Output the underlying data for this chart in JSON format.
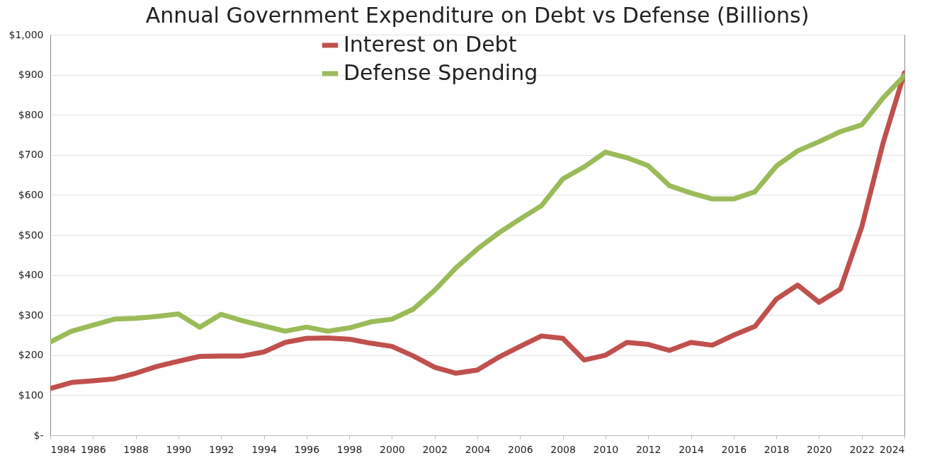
{
  "chart_data": {
    "type": "line",
    "title": "Annual Government Expenditure on Debt vs Defense (Billions)",
    "x": [
      1984,
      1985,
      1986,
      1987,
      1988,
      1989,
      1990,
      1991,
      1992,
      1993,
      1994,
      1995,
      1996,
      1997,
      1998,
      1999,
      2000,
      2001,
      2002,
      2003,
      2004,
      2005,
      2006,
      2007,
      2008,
      2009,
      2010,
      2011,
      2012,
      2013,
      2014,
      2015,
      2016,
      2017,
      2018,
      2019,
      2020,
      2021,
      2022,
      2023,
      2024
    ],
    "series": [
      {
        "name": "Interest on Debt",
        "color": "#c0504d",
        "values": [
          117,
          132,
          136,
          141,
          155,
          172,
          185,
          197,
          198,
          198,
          208,
          232,
          242,
          243,
          240,
          230,
          222,
          198,
          170,
          155,
          163,
          195,
          222,
          248,
          242,
          188,
          200,
          232,
          227,
          212,
          232,
          225,
          250,
          272,
          340,
          375,
          332,
          365,
          520,
          730,
          905
        ]
      },
      {
        "name": "Defense Spending",
        "color": "#9bbb59",
        "values": [
          233,
          260,
          275,
          290,
          292,
          297,
          303,
          270,
          302,
          286,
          273,
          260,
          270,
          260,
          268,
          283,
          290,
          315,
          362,
          418,
          465,
          505,
          540,
          573,
          640,
          670,
          707,
          693,
          673,
          623,
          605,
          590,
          590,
          608,
          672,
          710,
          733,
          758,
          775,
          842,
          898
        ]
      }
    ],
    "xlim": [
      1984,
      2024
    ],
    "xticks": [
      1984,
      1986,
      1988,
      1990,
      1992,
      1994,
      1996,
      1998,
      2000,
      2002,
      2004,
      2006,
      2008,
      2010,
      2012,
      2014,
      2016,
      2018,
      2020,
      2022,
      2024
    ],
    "ylim": [
      0,
      1000
    ],
    "yticks": [
      {
        "value": 0,
        "label": "$-"
      },
      {
        "value": 100,
        "label": "$100"
      },
      {
        "value": 200,
        "label": "$200"
      },
      {
        "value": 300,
        "label": "$300"
      },
      {
        "value": 400,
        "label": "$400"
      },
      {
        "value": 500,
        "label": "$500"
      },
      {
        "value": 600,
        "label": "$600"
      },
      {
        "value": 700,
        "label": "$700"
      },
      {
        "value": 800,
        "label": "$800"
      },
      {
        "value": 900,
        "label": "$900"
      },
      {
        "value": 1000,
        "label": "$1,000"
      }
    ],
    "grid": "y",
    "legend": "top",
    "marker": "none",
    "line_style": "solid"
  }
}
